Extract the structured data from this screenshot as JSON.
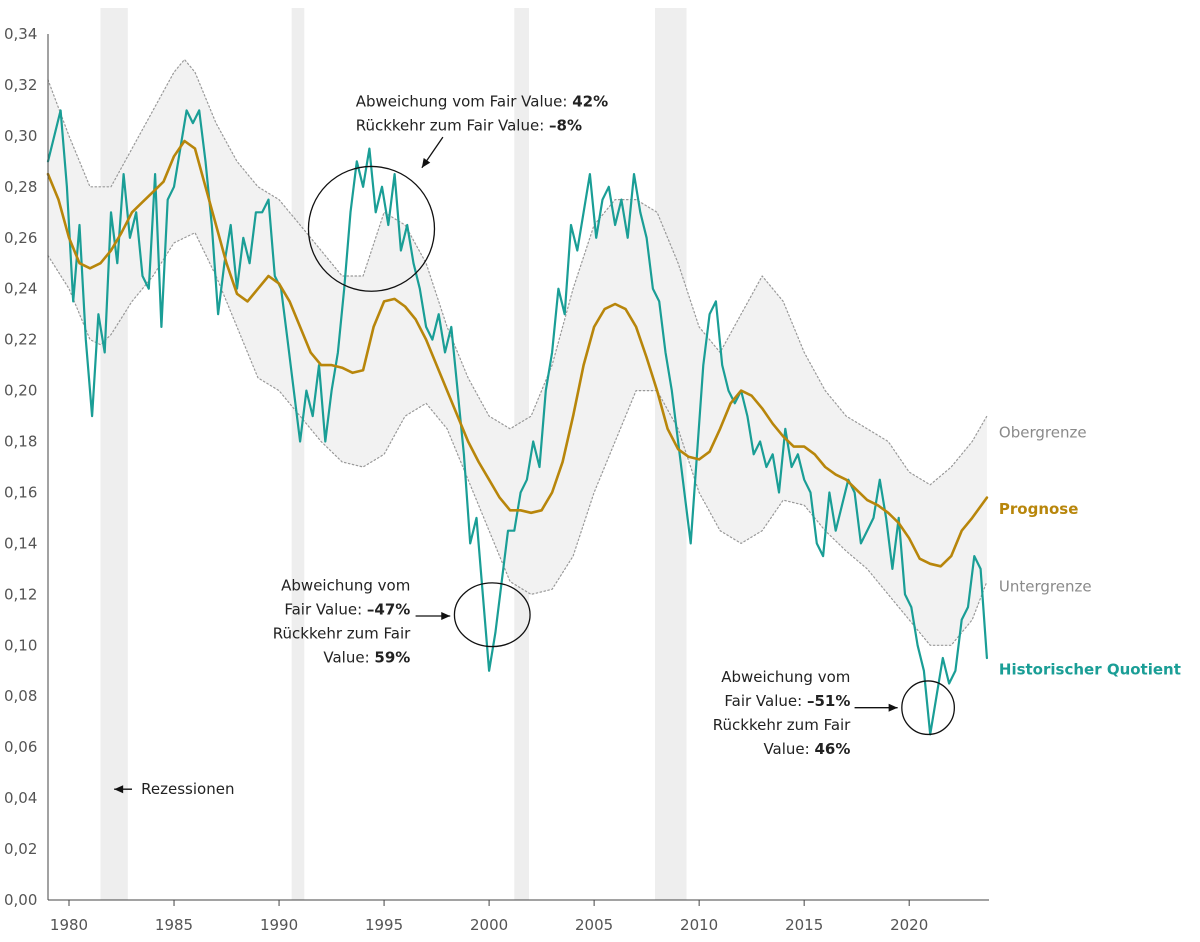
{
  "chart_data": {
    "type": "line",
    "title": "",
    "xlabel": "",
    "ylabel": "",
    "xlim": [
      1979.0,
      2023.8
    ],
    "ylim": [
      0,
      0.34
    ],
    "x_ticks": [
      1980,
      1985,
      1990,
      1995,
      2000,
      2005,
      2010,
      2015,
      2020
    ],
    "x_tick_labels": [
      "1980",
      "1985",
      "1990",
      "1995",
      "2000",
      "2005",
      "2010",
      "2015",
      "2020"
    ],
    "y_ticks": [
      0,
      0.02,
      0.04,
      0.06,
      0.08,
      0.1,
      0.12,
      0.14,
      0.16,
      0.18,
      0.2,
      0.22,
      0.24,
      0.26,
      0.28,
      0.3,
      0.32,
      0.34
    ],
    "y_tick_labels": [
      "0,00",
      "0,02",
      "0,04",
      "0,06",
      "0,08",
      "0,10",
      "0,12",
      "0,14",
      "0,16",
      "0,18",
      "0,20",
      "0,22",
      "0,24",
      "0,26",
      "0,28",
      "0,30",
      "0,32",
      "0,34"
    ],
    "grid": false,
    "recessions": [
      [
        1981.5,
        1982.8
      ],
      [
        1990.6,
        1991.2
      ],
      [
        2001.2,
        2001.9
      ],
      [
        2007.9,
        2009.4
      ]
    ],
    "recession_label": "Rezessionen",
    "series": [
      {
        "name": "Obergrenze",
        "color": "#999999",
        "style": "dotted",
        "x": [
          1979.0,
          1980.0,
          1981.0,
          1982.0,
          1983.0,
          1984.0,
          1985.0,
          1985.5,
          1986.0,
          1987.0,
          1988.0,
          1989.0,
          1990.0,
          1991.0,
          1992.0,
          1993.0,
          1994.0,
          1995.0,
          1996.0,
          1997.0,
          1998.0,
          1999.0,
          2000.0,
          2001.0,
          2002.0,
          2003.0,
          2004.0,
          2005.0,
          2006.0,
          2007.0,
          2008.0,
          2009.0,
          2010.0,
          2011.0,
          2012.0,
          2013.0,
          2014.0,
          2015.0,
          2016.0,
          2017.0,
          2018.0,
          2019.0,
          2020.0,
          2021.0,
          2022.0,
          2023.0,
          2023.7
        ],
        "y": [
          0.322,
          0.3,
          0.28,
          0.28,
          0.295,
          0.31,
          0.325,
          0.33,
          0.325,
          0.305,
          0.29,
          0.28,
          0.275,
          0.265,
          0.255,
          0.245,
          0.245,
          0.27,
          0.265,
          0.25,
          0.225,
          0.205,
          0.19,
          0.185,
          0.19,
          0.21,
          0.24,
          0.265,
          0.275,
          0.275,
          0.27,
          0.25,
          0.225,
          0.215,
          0.23,
          0.245,
          0.235,
          0.215,
          0.2,
          0.19,
          0.185,
          0.18,
          0.168,
          0.163,
          0.17,
          0.18,
          0.19
        ]
      },
      {
        "name": "Prognose",
        "color": "#B8860B",
        "style": "solid",
        "x": [
          1979.0,
          1979.5,
          1980.0,
          1980.5,
          1981.0,
          1981.5,
          1982.0,
          1982.5,
          1983.0,
          1983.5,
          1984.0,
          1984.5,
          1985.0,
          1985.5,
          1986.0,
          1986.5,
          1987.0,
          1987.5,
          1988.0,
          1988.5,
          1989.0,
          1989.5,
          1990.0,
          1990.5,
          1991.0,
          1991.5,
          1992.0,
          1992.5,
          1993.0,
          1993.5,
          1994.0,
          1994.5,
          1995.0,
          1995.5,
          1996.0,
          1996.5,
          1997.0,
          1997.5,
          1998.0,
          1998.5,
          1999.0,
          1999.5,
          2000.0,
          2000.5,
          2001.0,
          2001.5,
          2002.0,
          2002.5,
          2003.0,
          2003.5,
          2004.0,
          2004.5,
          2005.0,
          2005.5,
          2006.0,
          2006.5,
          2007.0,
          2007.5,
          2008.0,
          2008.5,
          2009.0,
          2009.5,
          2010.0,
          2010.5,
          2011.0,
          2011.5,
          2012.0,
          2012.5,
          2013.0,
          2013.5,
          2014.0,
          2014.5,
          2015.0,
          2015.5,
          2016.0,
          2016.5,
          2017.0,
          2017.5,
          2018.0,
          2018.5,
          2019.0,
          2019.5,
          2020.0,
          2020.5,
          2021.0,
          2021.5,
          2022.0,
          2022.5,
          2023.0,
          2023.7
        ],
        "y": [
          0.285,
          0.275,
          0.26,
          0.25,
          0.248,
          0.25,
          0.255,
          0.262,
          0.27,
          0.274,
          0.278,
          0.282,
          0.292,
          0.298,
          0.295,
          0.28,
          0.265,
          0.25,
          0.238,
          0.235,
          0.24,
          0.245,
          0.242,
          0.235,
          0.225,
          0.215,
          0.21,
          0.21,
          0.209,
          0.207,
          0.208,
          0.225,
          0.235,
          0.236,
          0.233,
          0.228,
          0.22,
          0.21,
          0.2,
          0.19,
          0.18,
          0.172,
          0.165,
          0.158,
          0.153,
          0.153,
          0.152,
          0.153,
          0.16,
          0.172,
          0.19,
          0.21,
          0.225,
          0.232,
          0.234,
          0.232,
          0.225,
          0.213,
          0.2,
          0.185,
          0.177,
          0.174,
          0.173,
          0.176,
          0.185,
          0.195,
          0.2,
          0.198,
          0.193,
          0.187,
          0.182,
          0.178,
          0.178,
          0.175,
          0.17,
          0.167,
          0.165,
          0.161,
          0.157,
          0.155,
          0.152,
          0.148,
          0.142,
          0.134,
          0.132,
          0.131,
          0.135,
          0.145,
          0.15,
          0.158
        ]
      },
      {
        "name": "Untergrenze",
        "color": "#999999",
        "style": "dotted",
        "x": [
          1979.0,
          1980.0,
          1981.0,
          1981.5,
          1982.0,
          1983.0,
          1984.0,
          1985.0,
          1986.0,
          1987.0,
          1988.0,
          1989.0,
          1990.0,
          1991.0,
          1992.0,
          1993.0,
          1994.0,
          1995.0,
          1996.0,
          1997.0,
          1998.0,
          1999.0,
          2000.0,
          2001.0,
          2002.0,
          2003.0,
          2004.0,
          2005.0,
          2006.0,
          2007.0,
          2008.0,
          2009.0,
          2010.0,
          2011.0,
          2012.0,
          2013.0,
          2014.0,
          2015.0,
          2016.0,
          2017.0,
          2018.0,
          2019.0,
          2020.0,
          2021.0,
          2022.0,
          2023.0,
          2023.7
        ],
        "y": [
          0.253,
          0.24,
          0.22,
          0.218,
          0.222,
          0.235,
          0.245,
          0.258,
          0.262,
          0.245,
          0.225,
          0.205,
          0.2,
          0.19,
          0.18,
          0.172,
          0.17,
          0.175,
          0.19,
          0.195,
          0.185,
          0.165,
          0.145,
          0.125,
          0.12,
          0.122,
          0.135,
          0.16,
          0.18,
          0.2,
          0.2,
          0.185,
          0.16,
          0.145,
          0.14,
          0.145,
          0.157,
          0.155,
          0.145,
          0.137,
          0.13,
          0.12,
          0.11,
          0.1,
          0.1,
          0.11,
          0.125
        ]
      },
      {
        "name": "Historischer Quotient",
        "color": "#1A9E96",
        "style": "solid",
        "x": [
          1979.0,
          1979.3,
          1979.6,
          1979.9,
          1980.2,
          1980.5,
          1980.8,
          1981.1,
          1981.4,
          1981.7,
          1982.0,
          1982.3,
          1982.6,
          1982.9,
          1983.2,
          1983.5,
          1983.8,
          1984.1,
          1984.4,
          1984.7,
          1985.0,
          1985.3,
          1985.6,
          1985.9,
          1986.2,
          1986.5,
          1986.8,
          1987.1,
          1987.4,
          1987.7,
          1988.0,
          1988.3,
          1988.6,
          1988.9,
          1989.2,
          1989.5,
          1989.8,
          1990.1,
          1990.4,
          1990.7,
          1991.0,
          1991.3,
          1991.6,
          1991.9,
          1992.2,
          1992.5,
          1992.8,
          1993.1,
          1993.4,
          1993.7,
          1994.0,
          1994.3,
          1994.6,
          1994.9,
          1995.2,
          1995.5,
          1995.8,
          1996.1,
          1996.4,
          1996.7,
          1997.0,
          1997.3,
          1997.6,
          1997.9,
          1998.2,
          1998.5,
          1998.8,
          1999.1,
          1999.4,
          1999.7,
          2000.0,
          2000.3,
          2000.6,
          2000.9,
          2001.2,
          2001.5,
          2001.8,
          2002.1,
          2002.4,
          2002.7,
          2003.0,
          2003.3,
          2003.6,
          2003.9,
          2004.2,
          2004.5,
          2004.8,
          2005.1,
          2005.4,
          2005.7,
          2006.0,
          2006.3,
          2006.6,
          2006.9,
          2007.2,
          2007.5,
          2007.8,
          2008.1,
          2008.4,
          2008.7,
          2009.0,
          2009.3,
          2009.6,
          2009.9,
          2010.2,
          2010.5,
          2010.8,
          2011.1,
          2011.4,
          2011.7,
          2012.0,
          2012.3,
          2012.6,
          2012.9,
          2013.2,
          2013.5,
          2013.8,
          2014.1,
          2014.4,
          2014.7,
          2015.0,
          2015.3,
          2015.6,
          2015.9,
          2016.2,
          2016.5,
          2016.8,
          2017.1,
          2017.4,
          2017.7,
          2018.0,
          2018.3,
          2018.6,
          2018.9,
          2019.2,
          2019.5,
          2019.8,
          2020.1,
          2020.4,
          2020.7,
          2021.0,
          2021.3,
          2021.6,
          2021.9,
          2022.2,
          2022.5,
          2022.8,
          2023.1,
          2023.4,
          2023.7
        ],
        "y": [
          0.29,
          0.3,
          0.31,
          0.28,
          0.235,
          0.265,
          0.22,
          0.19,
          0.23,
          0.215,
          0.27,
          0.25,
          0.285,
          0.26,
          0.27,
          0.245,
          0.24,
          0.285,
          0.225,
          0.275,
          0.28,
          0.295,
          0.31,
          0.305,
          0.31,
          0.29,
          0.265,
          0.23,
          0.25,
          0.265,
          0.24,
          0.26,
          0.25,
          0.27,
          0.27,
          0.275,
          0.245,
          0.24,
          0.22,
          0.2,
          0.18,
          0.2,
          0.19,
          0.21,
          0.18,
          0.2,
          0.215,
          0.24,
          0.27,
          0.29,
          0.28,
          0.295,
          0.27,
          0.28,
          0.265,
          0.285,
          0.255,
          0.265,
          0.25,
          0.24,
          0.225,
          0.22,
          0.23,
          0.215,
          0.225,
          0.2,
          0.175,
          0.14,
          0.15,
          0.12,
          0.09,
          0.105,
          0.125,
          0.145,
          0.145,
          0.16,
          0.165,
          0.18,
          0.17,
          0.2,
          0.215,
          0.24,
          0.23,
          0.265,
          0.255,
          0.27,
          0.285,
          0.26,
          0.275,
          0.28,
          0.265,
          0.275,
          0.26,
          0.285,
          0.27,
          0.26,
          0.24,
          0.235,
          0.215,
          0.2,
          0.18,
          0.16,
          0.14,
          0.175,
          0.21,
          0.23,
          0.235,
          0.21,
          0.2,
          0.195,
          0.2,
          0.19,
          0.175,
          0.18,
          0.17,
          0.175,
          0.16,
          0.185,
          0.17,
          0.175,
          0.165,
          0.16,
          0.14,
          0.135,
          0.16,
          0.145,
          0.155,
          0.165,
          0.16,
          0.14,
          0.145,
          0.15,
          0.165,
          0.15,
          0.13,
          0.15,
          0.12,
          0.115,
          0.1,
          0.09,
          0.065,
          0.08,
          0.095,
          0.085,
          0.09,
          0.11,
          0.115,
          0.135,
          0.13,
          0.095
        ]
      }
    ],
    "series_labels": [
      {
        "text": "Obergrenze",
        "color": "#8a8a8a",
        "bold": false,
        "at_x": 2023.7,
        "at_y": 0.1835
      },
      {
        "text": "Prognose",
        "color": "#B8860B",
        "bold": true,
        "at_x": 2023.7,
        "at_y": 0.1535
      },
      {
        "text": "Untergrenze",
        "color": "#8a8a8a",
        "bold": false,
        "at_x": 2023.7,
        "at_y": 0.123
      },
      {
        "text": "Historischer Quotient",
        "color": "#1A9E96",
        "bold": true,
        "at_x": 2023.7,
        "at_y": 0.0905
      }
    ],
    "annotations": [
      {
        "name": "annotation-1994",
        "circle": {
          "cx": 1994.4,
          "cy": 0.2635,
          "rx_years": 3.0,
          "ry": 0.0245
        },
        "lines": [
          {
            "normal": "Abweichung vom Fair Value: ",
            "bold": "42%"
          },
          {
            "normal": "Rückkehr zum Fair Value: ",
            "bold": "–8%"
          }
        ],
        "text_x": 1993.65,
        "text_y": 0.3115,
        "align": "start",
        "arrow_from": [
          1997.8,
          0.2995
        ],
        "arrow_to": [
          1996.8,
          0.2875
        ]
      },
      {
        "name": "annotation-2000",
        "circle": {
          "cx": 2000.15,
          "cy": 0.112,
          "rx_years": 1.8,
          "ry": 0.0125
        },
        "lines": [
          {
            "normal": "Abweichung vom",
            "bold": ""
          },
          {
            "normal": "Fair Value: ",
            "bold": "–47%"
          },
          {
            "normal": "Rückkehr zum Fair",
            "bold": ""
          },
          {
            "normal": "Value: ",
            "bold": "59%"
          }
        ],
        "text_x": 1996.25,
        "text_y": 0.1215,
        "align": "end",
        "arrow_from": [
          1996.5,
          0.1115
        ],
        "arrow_to": [
          1998.15,
          0.1115
        ]
      },
      {
        "name": "annotation-2021",
        "circle": {
          "cx": 2020.9,
          "cy": 0.0755,
          "rx_years": 1.25,
          "ry": 0.0105
        },
        "lines": [
          {
            "normal": "Abweichung vom",
            "bold": ""
          },
          {
            "normal": "Fair Value: ",
            "bold": "–51%"
          },
          {
            "normal": "Rückkehr zum Fair",
            "bold": ""
          },
          {
            "normal": "Value: ",
            "bold": "46%"
          }
        ],
        "text_x": 2017.2,
        "text_y": 0.0855,
        "align": "end",
        "arrow_from": [
          2017.4,
          0.0755
        ],
        "arrow_to": [
          2019.45,
          0.0755
        ]
      }
    ],
    "recession_annotation": {
      "text": "Rezessionen",
      "text_x": 1983.15,
      "text_y": 0.0435,
      "arrow_from": [
        1983.0,
        0.0435
      ],
      "arrow_to": [
        1982.15,
        0.0435
      ]
    },
    "colors": {
      "band_fill": "#f2f2f2",
      "recession_fill": "#eeeeee",
      "axis": "#444444"
    }
  }
}
